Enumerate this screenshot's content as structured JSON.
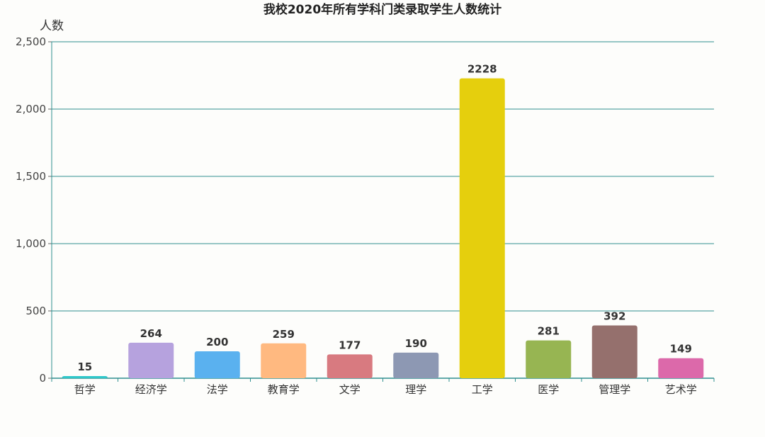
{
  "chart_data": {
    "type": "bar",
    "title": "我校2020年所有学科门类录取学生人数统计",
    "ylabel": "人数",
    "xlabel": "",
    "ylim": [
      0,
      2500
    ],
    "yticks": [
      0,
      500,
      1000,
      1500,
      2000,
      2500
    ],
    "ytick_labels": [
      "0",
      "500",
      "1,000",
      "1,500",
      "2,000",
      "2,500"
    ],
    "grid": true,
    "categories": [
      "哲学",
      "经济学",
      "法学",
      "教育学",
      "文学",
      "理学",
      "工学",
      "医学",
      "管理学",
      "艺术学"
    ],
    "values": [
      15,
      264,
      200,
      259,
      177,
      190,
      2228,
      281,
      392,
      149
    ],
    "colors": [
      "#2ec7c9",
      "#b6a2de",
      "#5ab1ef",
      "#ffb980",
      "#d87a80",
      "#8d98b3",
      "#e5cf0d",
      "#97b552",
      "#95706d",
      "#dc69aa"
    ],
    "gridline_color": "#2f8f8f"
  }
}
